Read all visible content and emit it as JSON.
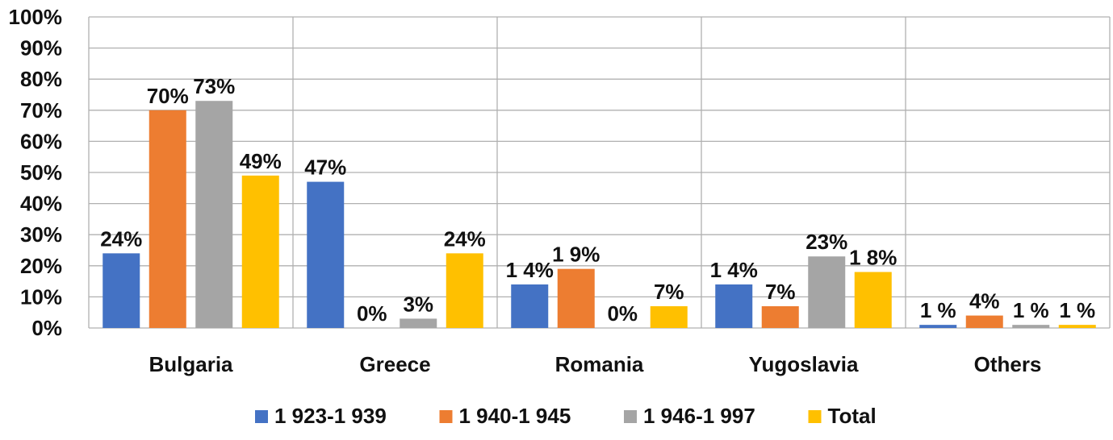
{
  "chart_data": {
    "type": "bar",
    "categories": [
      "Bulgaria",
      "Greece",
      "Romania",
      "Yugoslavia",
      "Others"
    ],
    "series": [
      {
        "name": "1 923-1 939",
        "color": "#4472C4",
        "values": [
          24,
          47,
          14,
          14,
          1
        ],
        "labels": [
          "24%",
          "47%",
          "1 4%",
          "1 4%",
          "1 %"
        ]
      },
      {
        "name": "1 940-1 945",
        "color": "#ED7D31",
        "values": [
          70,
          0,
          19,
          7,
          4
        ],
        "labels": [
          "70%",
          "0%",
          "1 9%",
          "7%",
          "4%"
        ]
      },
      {
        "name": "1 946-1 997",
        "color": "#A5A5A5",
        "values": [
          73,
          3,
          0,
          23,
          1
        ],
        "labels": [
          "73%",
          "3%",
          "0%",
          "23%",
          "1 %"
        ]
      },
      {
        "name": "Total",
        "color": "#FFC000",
        "values": [
          49,
          24,
          7,
          18,
          1
        ],
        "labels": [
          "49%",
          "24%",
          "7%",
          "1 8%",
          "1 %"
        ]
      }
    ],
    "ylim": [
      0,
      100
    ],
    "yticks": [
      "0%",
      "10%",
      "20%",
      "30%",
      "40%",
      "50%",
      "60%",
      "70%",
      "80%",
      "90%",
      "100%"
    ],
    "grid": true,
    "legend_position": "bottom"
  }
}
